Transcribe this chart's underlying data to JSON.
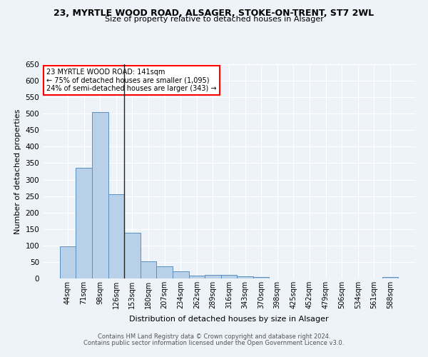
{
  "title": "23, MYRTLE WOOD ROAD, ALSAGER, STOKE-ON-TRENT, ST7 2WL",
  "subtitle": "Size of property relative to detached houses in Alsager",
  "xlabel": "Distribution of detached houses by size in Alsager",
  "ylabel": "Number of detached properties",
  "categories": [
    "44sqm",
    "71sqm",
    "98sqm",
    "126sqm",
    "153sqm",
    "180sqm",
    "207sqm",
    "234sqm",
    "262sqm",
    "289sqm",
    "316sqm",
    "343sqm",
    "370sqm",
    "398sqm",
    "425sqm",
    "452sqm",
    "479sqm",
    "506sqm",
    "534sqm",
    "561sqm",
    "588sqm"
  ],
  "values": [
    97,
    335,
    505,
    255,
    138,
    53,
    37,
    21,
    9,
    10,
    10,
    7,
    5,
    1,
    1,
    1,
    1,
    1,
    1,
    1,
    5
  ],
  "bar_color": "#b8d0e8",
  "bar_edge_color": "#5a8fc0",
  "annotation_box": {
    "text_line1": "23 MYRTLE WOOD ROAD: 141sqm",
    "text_line2": "← 75% of detached houses are smaller (1,095)",
    "text_line3": "24% of semi-detached houses are larger (343) →"
  },
  "ylim": [
    0,
    650
  ],
  "yticks": [
    0,
    50,
    100,
    150,
    200,
    250,
    300,
    350,
    400,
    450,
    500,
    550,
    600,
    650
  ],
  "background_color": "#eef2f9",
  "grid_color": "#ffffff",
  "footer_line1": "Contains HM Land Registry data © Crown copyright and database right 2024.",
  "footer_line2": "Contains public sector information licensed under the Open Government Licence v3.0."
}
